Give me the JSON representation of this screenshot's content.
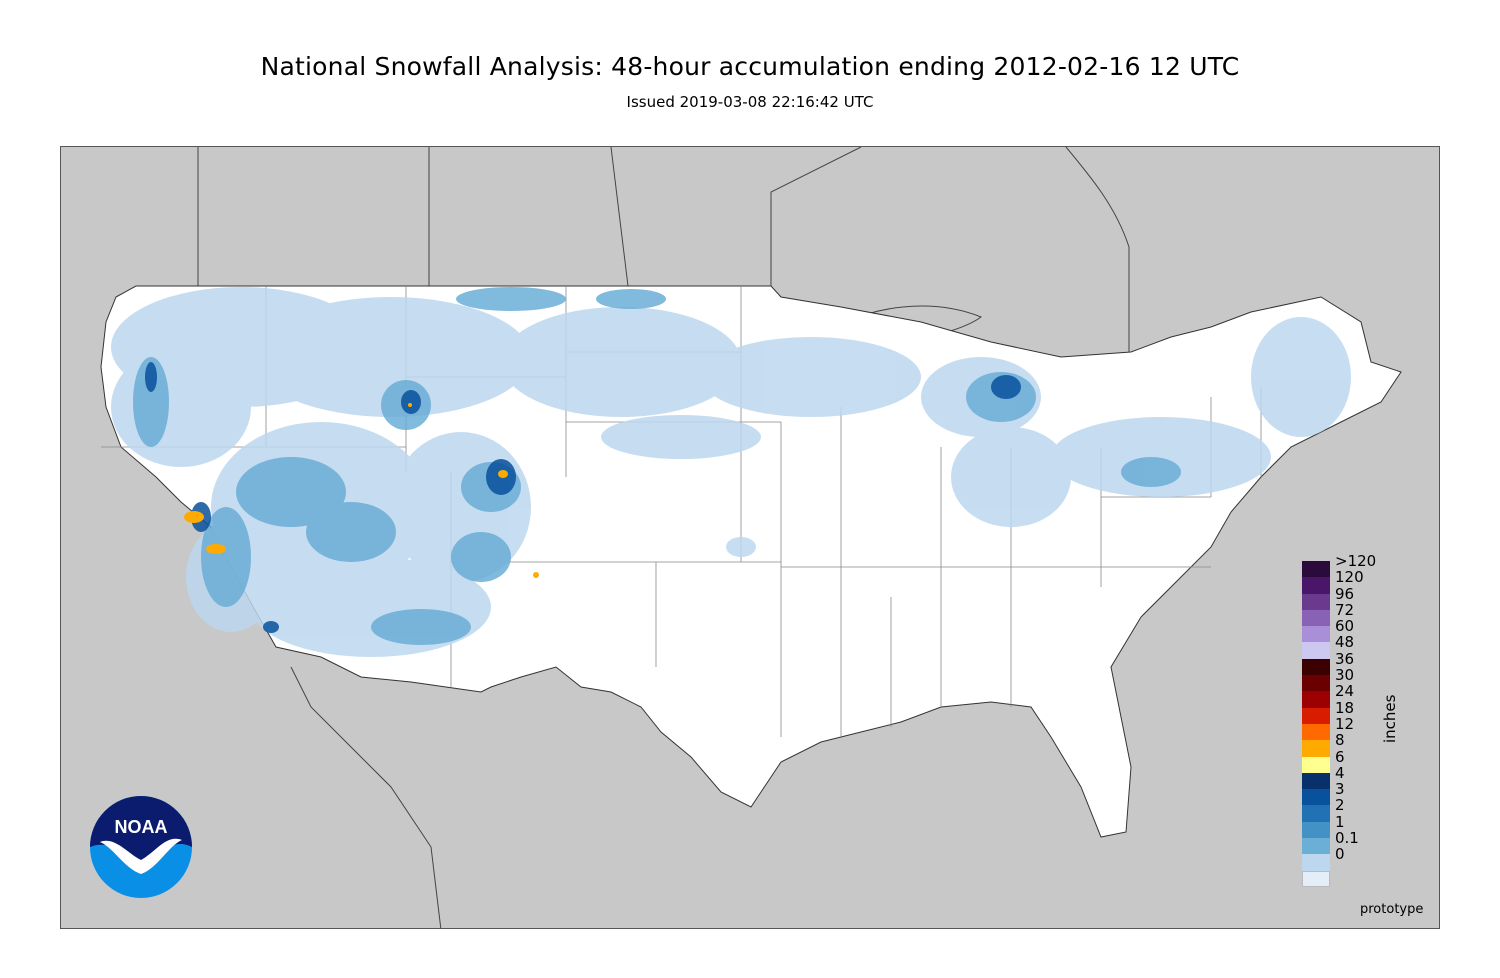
{
  "header": {
    "title": "National Snowfall Analysis: 48-hour accumulation ending 2012-02-16 12 UTC",
    "subtitle": "Issued 2019-03-08 22:16:42 UTC"
  },
  "map": {
    "land_color": "#c8c8c8",
    "us_fill": "#ffffff",
    "water_color": "#c8c8c8"
  },
  "legend": {
    "units": "inches",
    "entries": [
      {
        "label": ">120",
        "color": "#2b0b3b"
      },
      {
        "label": "120",
        "color": "#4a1668"
      },
      {
        "label": "96",
        "color": "#6a3a8f"
      },
      {
        "label": "72",
        "color": "#8a62b5"
      },
      {
        "label": "60",
        "color": "#a98fd7"
      },
      {
        "label": "48",
        "color": "#cdc8f0"
      },
      {
        "label": "36",
        "color": "#3b0000"
      },
      {
        "label": "30",
        "color": "#6a0000"
      },
      {
        "label": "24",
        "color": "#9d0000"
      },
      {
        "label": "18",
        "color": "#d81c00"
      },
      {
        "label": "12",
        "color": "#ff6a00"
      },
      {
        "label": "8",
        "color": "#ffaa00"
      },
      {
        "label": "6",
        "color": "#ffff90"
      },
      {
        "label": "4",
        "color": "#08306b"
      },
      {
        "label": "3",
        "color": "#08519c"
      },
      {
        "label": "2",
        "color": "#2171b5"
      },
      {
        "label": "1",
        "color": "#4292c6"
      },
      {
        "label": "0.1",
        "color": "#6baed6"
      },
      {
        "label": "0",
        "color": "#bdd7ee"
      },
      {
        "label": "",
        "color": "#e3eef8"
      }
    ]
  },
  "footer": {
    "prototype": "prototype"
  },
  "logo": {
    "text": "NOAA",
    "name": "noaa-logo"
  }
}
